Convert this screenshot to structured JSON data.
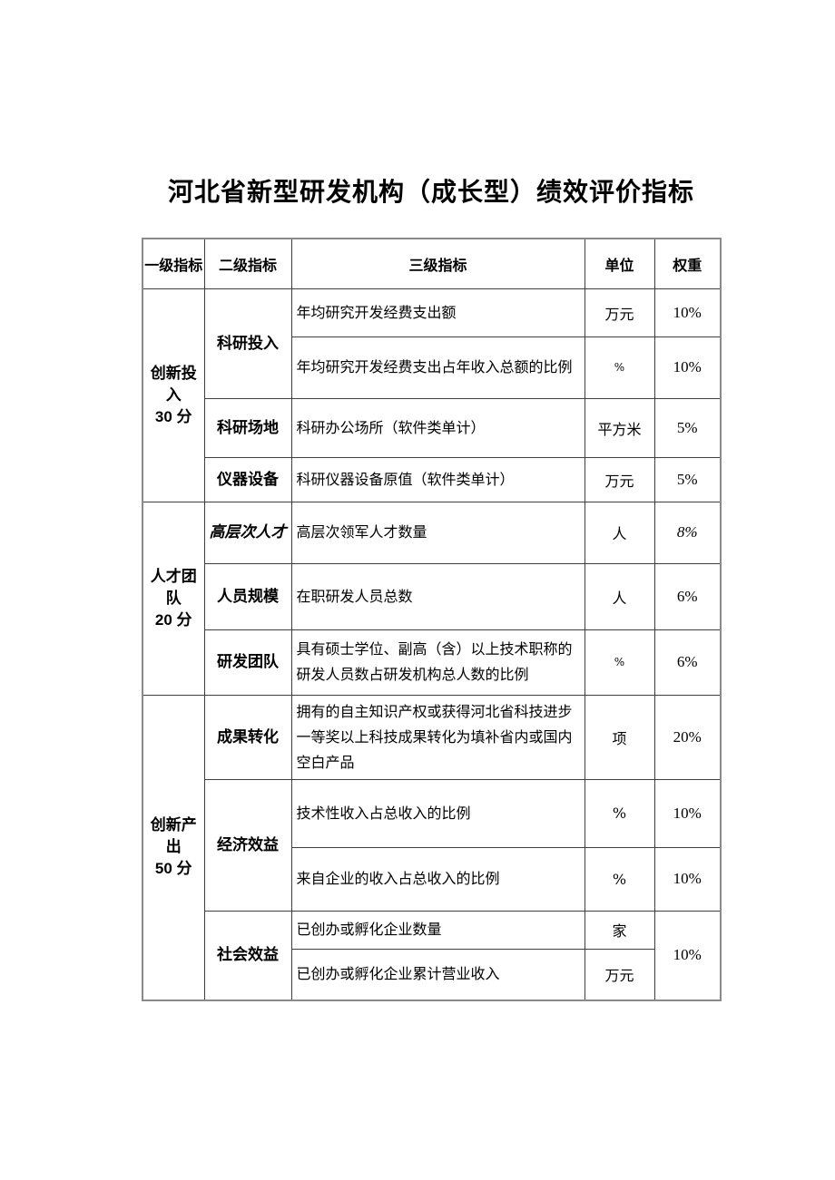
{
  "document": {
    "title": "河北省新型研发机构（成长型）绩效评价指标"
  },
  "table": {
    "headers": {
      "level1": "一级指标",
      "level2": "二级指标",
      "level3": "三级指标",
      "unit": "单位",
      "weight": "权重"
    },
    "sections": [
      {
        "name": "创新投入",
        "score": "30 分",
        "groups": [
          {
            "level2": "科研投入",
            "rows": [
              {
                "indicator": "年均研究开发经费支出额",
                "unit": "万元",
                "weight": "10%"
              },
              {
                "indicator": "年均研究开发经费支出占年收入总额的比例",
                "unit": "%",
                "weight": "10%"
              }
            ]
          },
          {
            "level2": "科研场地",
            "rows": [
              {
                "indicator": "科研办公场所（软件类单计）",
                "unit": "平方米",
                "weight": "5%"
              }
            ]
          },
          {
            "level2": "仪器设备",
            "rows": [
              {
                "indicator": "科研仪器设备原值（软件类单计）",
                "unit": "万元",
                "weight": "5%"
              }
            ]
          }
        ]
      },
      {
        "name": "人才团队",
        "score": "20 分",
        "groups": [
          {
            "level2": "高层次人才",
            "rows": [
              {
                "indicator": "高层次领军人才数量",
                "unit": "人",
                "weight": "8%"
              }
            ]
          },
          {
            "level2": "人员规模",
            "rows": [
              {
                "indicator": "在职研发人员总数",
                "unit": "人",
                "weight": "6%"
              }
            ]
          },
          {
            "level2": "研发团队",
            "rows": [
              {
                "indicator": "具有硕士学位、副高（含）以上技术职称的研发人员数占研发机构总人数的比例",
                "unit": "%",
                "weight": "6%"
              }
            ]
          }
        ]
      },
      {
        "name": "创新产出",
        "score": "50 分",
        "groups": [
          {
            "level2": "成果转化",
            "rows": [
              {
                "indicator": "拥有的自主知识产权或获得河北省科技进步一等奖以上科技成果转化为填补省内或国内空白产品",
                "unit": "项",
                "weight": "20%"
              }
            ]
          },
          {
            "level2": "经济效益",
            "rows": [
              {
                "indicator": "技术性收入占总收入的比例",
                "unit": "%",
                "weight": "10%"
              },
              {
                "indicator": "来自企业的收入占总收入的比例",
                "unit": "%",
                "weight": "10%"
              }
            ]
          },
          {
            "level2": "社会效益",
            "merged_weight": "10%",
            "rows": [
              {
                "indicator": "已创办或孵化企业数量",
                "unit": "家"
              },
              {
                "indicator": "已创办或孵化企业累计营业收入",
                "unit": "万元"
              }
            ]
          }
        ]
      }
    ]
  }
}
